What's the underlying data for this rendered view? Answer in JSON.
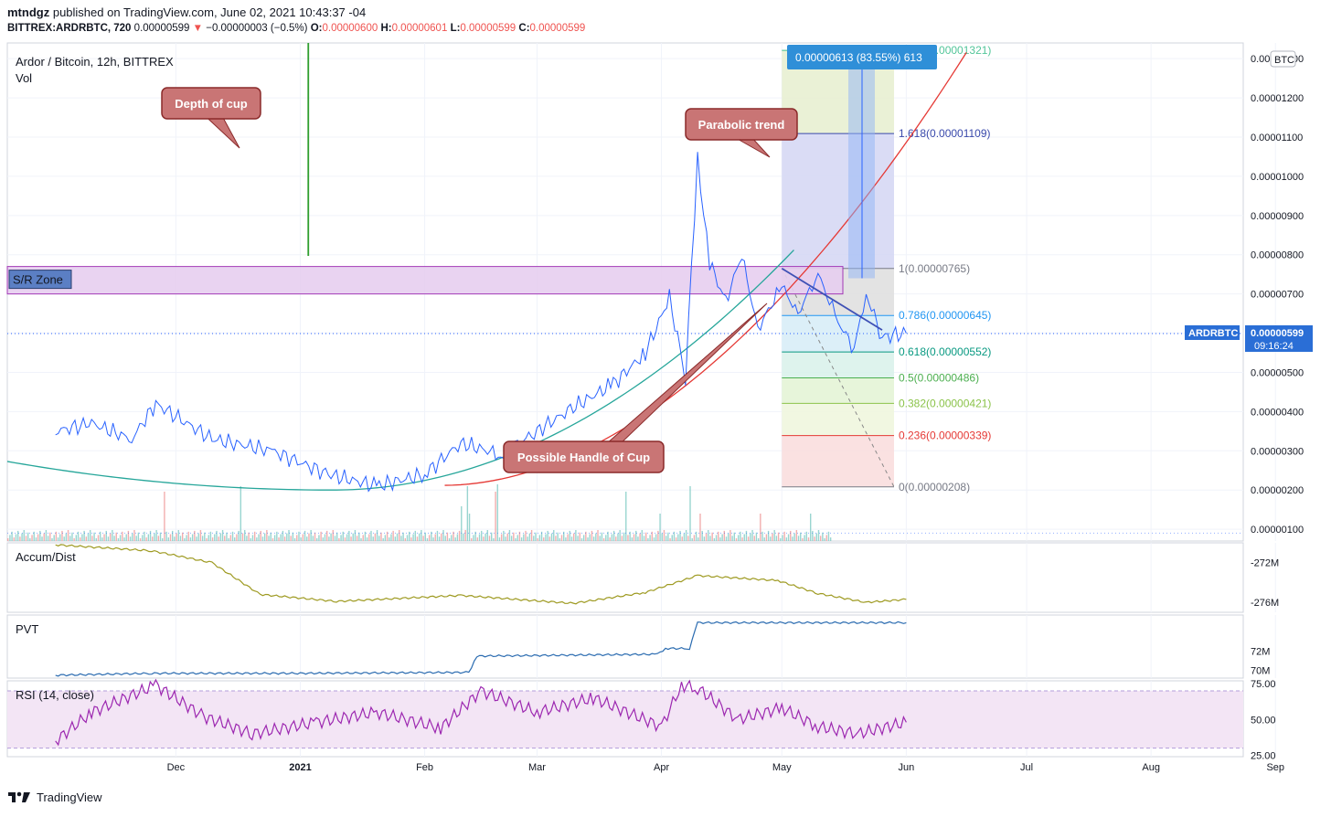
{
  "header": {
    "publisher": "mtndgz",
    "published_text": "published on TradingView.com, June 02, 2021 10:43:37 -04",
    "symbol": "BITTREX:ARDRBTC, 720",
    "last": "0.00000599",
    "change_arrow": "▼",
    "change": "−0.00000003 (−0.5%)",
    "o_label": "O:",
    "o": "0.00000600",
    "h_label": "H:",
    "h": "0.00000601",
    "l_label": "L:",
    "l": "0.00000599",
    "c_label": "C:",
    "c": "0.00000599"
  },
  "footer": {
    "brand": "TradingView"
  },
  "colors": {
    "price": "#2962ff",
    "parabola": "#e53935",
    "cup": "#26a69a",
    "sr_zone": "#9c27b0",
    "accum": "#9e9a21",
    "pvt": "#2a6bb0",
    "rsi": "#9c27b0",
    "last_price_bg": "#2a6ed6",
    "vertical_line": "#2e9e2e"
  },
  "chart_data": [
    {
      "type": "line",
      "title": "Ardor / Bitcoin, 12h, BITTREX",
      "subtitle": "Vol",
      "currency_badge": "BTC",
      "x_ticks": [
        "Dec",
        "2021",
        "Feb",
        "Mar",
        "Apr",
        "May",
        "Jun",
        "Jul",
        "Aug",
        "Sep"
      ],
      "y_ticks": [
        "0.00001300",
        "0.00001200",
        "0.00001100",
        "0.00001000",
        "0.00000900",
        "0.00000800",
        "0.00000700",
        "0.00000600",
        "0.00000500",
        "0.00000400",
        "0.00000300",
        "0.00000200",
        "0.00000100"
      ],
      "ylim": [
        7e-07,
        1.34e-05
      ],
      "last_price_label": "ARDRBTC",
      "last_price": "0.00000599",
      "countdown": "09:16:24",
      "series": [
        {
          "name": "price",
          "x": [
            "2020-11-01",
            "2020-11-10",
            "2020-11-20",
            "2020-11-26",
            "2020-12-10",
            "2020-12-25",
            "2021-01-08",
            "2021-01-20",
            "2021-02-01",
            "2021-02-10",
            "2021-02-20",
            "2021-03-01",
            "2021-03-10",
            "2021-03-20",
            "2021-03-28",
            "2021-04-03",
            "2021-04-07",
            "2021-04-10",
            "2021-04-13",
            "2021-04-17",
            "2021-04-21",
            "2021-04-25",
            "2021-05-01",
            "2021-05-05",
            "2021-05-10",
            "2021-05-15",
            "2021-05-19",
            "2021-05-22",
            "2021-05-26",
            "2021-06-01"
          ],
          "y": [
            3.5e-06,
            3.7e-06,
            3.3e-06,
            4.2e-06,
            3.3e-06,
            3e-06,
            2.4e-06,
            2.1e-06,
            2.4e-06,
            3.2e-06,
            2.9e-06,
            3.5e-06,
            4.1e-06,
            4.7e-06,
            5.5e-06,
            6.9e-06,
            4.9e-06,
            1.04e-05,
            7.8e-06,
            6.8e-06,
            8e-06,
            6.1e-06,
            7.2e-06,
            6.5e-06,
            7.5e-06,
            6.3e-06,
            5.6e-06,
            7e-06,
            5.9e-06,
            6e-06
          ]
        }
      ],
      "annotations": [
        {
          "text": "Depth of cup"
        },
        {
          "text": "Parabolic trend"
        },
        {
          "text": "Possible Handle of Cup"
        },
        {
          "text": "S/R Zone"
        },
        {
          "text": "0.00000613 (83.55%) 613"
        }
      ],
      "fib_levels": [
        {
          "ratio": "2.618",
          "label": "2.618(0.00001321)",
          "value": 1.321e-05,
          "color": "#3fbf8f"
        },
        {
          "ratio": "1.618",
          "label": "1.618(0.00001109)",
          "value": 1.109e-05,
          "color": "#3949ab"
        },
        {
          "ratio": "1",
          "label": "1(0.00000765)",
          "value": 7.65e-06,
          "color": "#787b86"
        },
        {
          "ratio": "0.786",
          "label": "0.786(0.00000645)",
          "value": 6.45e-06,
          "color": "#2196f3"
        },
        {
          "ratio": "0.618",
          "label": "0.618(0.00000552)",
          "value": 5.52e-06,
          "color": "#089981"
        },
        {
          "ratio": "0.5",
          "label": "0.5(0.00000486)",
          "value": 4.86e-06,
          "color": "#4caf50"
        },
        {
          "ratio": "0.382",
          "label": "0.382(0.00000421)",
          "value": 4.21e-06,
          "color": "#8bc34a"
        },
        {
          "ratio": "0.236",
          "label": "0.236(0.00000339)",
          "value": 3.39e-06,
          "color": "#e53935"
        },
        {
          "ratio": "0",
          "label": "0(0.00000208)",
          "value": 2.08e-06,
          "color": "#787b86"
        }
      ],
      "sr_zone": [
        7e-06,
        7.7e-06
      ]
    },
    {
      "type": "line",
      "title": "Accum/Dist",
      "y_ticks": [
        "-272M",
        "-276M"
      ],
      "ylim": [
        -277,
        -270
      ],
      "series": [
        {
          "name": "Accum/Dist",
          "x": [
            "2020-11-01",
            "2020-11-25",
            "2020-12-10",
            "2020-12-22",
            "2021-01-10",
            "2021-02-10",
            "2021-03-10",
            "2021-03-28",
            "2021-04-10",
            "2021-04-30",
            "2021-05-10",
            "2021-05-22",
            "2021-06-01"
          ],
          "y": [
            -270.2,
            -270.8,
            -272.0,
            -275.2,
            -275.9,
            -275.3,
            -276.1,
            -275.0,
            -273.3,
            -273.8,
            -275.1,
            -276.0,
            -275.7
          ]
        }
      ]
    },
    {
      "type": "line",
      "title": "PVT",
      "y_ticks": [
        "72M",
        "70M"
      ],
      "ylim": [
        69.2,
        75.8
      ],
      "series": [
        {
          "name": "PVT",
          "x": [
            "2020-11-01",
            "2020-11-25",
            "2021-01-01",
            "2021-02-12",
            "2021-02-14",
            "2021-03-31",
            "2021-04-02",
            "2021-04-08",
            "2021-04-10",
            "2021-06-01"
          ],
          "y": [
            69.5,
            69.7,
            69.7,
            69.8,
            71.5,
            71.7,
            72.3,
            72.3,
            75.0,
            75.0
          ]
        }
      ]
    },
    {
      "type": "line",
      "title": "RSI (14, close)",
      "y_ticks": [
        "75.00",
        "50.00",
        "25.00"
      ],
      "ylim": [
        24,
        77
      ],
      "series": [
        {
          "name": "RSI",
          "x": [
            "2020-11-01",
            "2020-11-10",
            "2020-11-26",
            "2020-12-08",
            "2020-12-20",
            "2021-01-05",
            "2021-01-20",
            "2021-02-05",
            "2021-02-15",
            "2021-03-01",
            "2021-03-15",
            "2021-04-01",
            "2021-04-06",
            "2021-04-10",
            "2021-04-20",
            "2021-05-01",
            "2021-05-10",
            "2021-05-20",
            "2021-06-01"
          ],
          "y": [
            35,
            55,
            74,
            52,
            40,
            48,
            55,
            44,
            70,
            55,
            65,
            45,
            74,
            72,
            50,
            58,
            45,
            40,
            48
          ]
        }
      ]
    }
  ]
}
